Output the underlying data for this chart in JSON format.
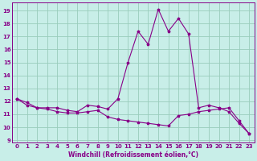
{
  "xlabel": "Windchill (Refroidissement éolien,°C)",
  "background_color": "#c8eee8",
  "grid_color": "#99ccbb",
  "line_color": "#880088",
  "spine_color": "#880088",
  "xlim": [
    -0.5,
    23.5
  ],
  "ylim": [
    8.8,
    19.6
  ],
  "yticks": [
    9,
    10,
    11,
    12,
    13,
    14,
    15,
    16,
    17,
    18,
    19
  ],
  "xticks": [
    0,
    1,
    2,
    3,
    4,
    5,
    6,
    7,
    8,
    9,
    10,
    11,
    12,
    13,
    14,
    15,
    16,
    17,
    18,
    19,
    20,
    21,
    22,
    23
  ],
  "series1": [
    12.2,
    11.9,
    11.5,
    11.5,
    11.5,
    11.3,
    11.2,
    11.7,
    11.6,
    11.4,
    12.2,
    15.0,
    17.4,
    16.4,
    19.1,
    17.4,
    18.4,
    17.2,
    11.5,
    11.7,
    11.5,
    11.2,
    10.3,
    9.5
  ],
  "series2": [
    12.2,
    11.7,
    11.5,
    11.4,
    11.2,
    11.1,
    11.1,
    11.2,
    11.3,
    10.8,
    10.6,
    10.5,
    10.4,
    10.3,
    10.2,
    10.1,
    10.9,
    11.0,
    11.2,
    11.3,
    11.4,
    11.5,
    10.5,
    9.5
  ],
  "xlabel_fontsize": 5.5,
  "tick_fontsize": 5.0
}
